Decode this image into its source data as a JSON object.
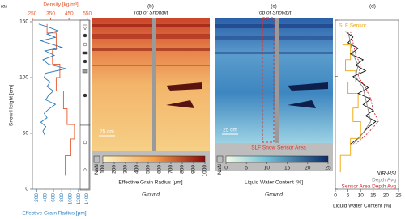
{
  "panel_labels": [
    "(a)",
    "(b)",
    "(c)",
    "(d)"
  ],
  "chart_data": [
    {
      "type": "profile",
      "y_label": "Snow Height [cm]",
      "ylim": [
        0,
        150
      ],
      "yticks": [
        0,
        50,
        100,
        150
      ],
      "x_label": "Density [kg/m³]",
      "xlim": [
        250,
        560
      ],
      "xticks": [
        250,
        350,
        450,
        550
      ],
      "x2_label": "Effective Grain Radius [μm]",
      "x2lim": [
        100,
        1450
      ],
      "x2ticks": [
        200,
        400,
        600,
        800,
        1000,
        1200,
        1400
      ],
      "series": [
        {
          "color": "#e4572e",
          "y": [
            148,
            140,
            140,
            125,
            125,
            112,
            112,
            100,
            100,
            88,
            88,
            72,
            72,
            58,
            58,
            45,
            45,
            30,
            30,
            12
          ],
          "x": [
            330,
            330,
            380,
            380,
            360,
            360,
            400,
            400,
            380,
            380,
            420,
            420,
            440,
            440,
            480,
            480,
            460,
            460,
            430,
            430
          ]
        },
        {
          "color": "#2b7bba",
          "axis": "x2",
          "y": [
            148,
            145,
            142,
            139,
            136,
            133,
            130,
            127,
            124,
            120,
            116,
            112,
            108,
            104,
            100,
            96,
            92,
            88,
            84,
            80,
            76,
            72,
            68,
            64,
            60,
            56,
            52,
            48
          ],
          "x": [
            250,
            500,
            700,
            450,
            650,
            300,
            550,
            800,
            400,
            620,
            350,
            480,
            900,
            420,
            380,
            520,
            450,
            600,
            480,
            420,
            650,
            500,
            380,
            450,
            300,
            420,
            350,
            400
          ]
        }
      ]
    },
    {
      "type": "heatmap",
      "title": "Top of Snowpit",
      "bottom_label": "Ground",
      "scale_label": "25 cm",
      "colorbar_label": "Effective Grain Radius [μm]",
      "nan_label": "NaN",
      "zlim": [
        100,
        1000
      ],
      "zticks": [
        100,
        200,
        300,
        400,
        500,
        600,
        700,
        800,
        900,
        1000
      ]
    },
    {
      "type": "heatmap",
      "title": "Top of Snowpit",
      "bottom_label": "Ground",
      "scale_label": "25 cm",
      "colorbar_label": "Liquid Water Content [%]",
      "nan_label": "NaN",
      "annotation": "SLF Snow Sensor Area",
      "zlim": [
        0,
        25
      ],
      "zticks": [
        0,
        5,
        10,
        15,
        20,
        25
      ]
    },
    {
      "type": "line",
      "x_label": "Liquid Water Content [%]",
      "xlim": [
        0,
        25
      ],
      "xticks": [
        0,
        5,
        10,
        15,
        20,
        25
      ],
      "ylim": [
        0,
        150
      ],
      "yticks": [
        0,
        50,
        100,
        150
      ],
      "series": [
        {
          "name": "SLF Sensor",
          "color": "#f0a500",
          "dash": false,
          "y": [
            140,
            128,
            128,
            115,
            115,
            105,
            105,
            95,
            95,
            85,
            85,
            72,
            72,
            60,
            60,
            45,
            45,
            30,
            30,
            15
          ],
          "values": [
            3,
            3,
            6,
            6,
            4,
            4,
            8,
            8,
            5,
            5,
            9,
            9,
            7,
            7,
            10,
            10,
            6,
            6,
            2,
            2
          ]
        },
        {
          "name": "NIR-HSI",
          "color": "#111111",
          "dash": false,
          "y": [
            140,
            135,
            130,
            125,
            120,
            115,
            110,
            105,
            100,
            95,
            90,
            85,
            80,
            75,
            70,
            65,
            60,
            55,
            50,
            45,
            40
          ],
          "values": [
            4,
            7,
            5,
            9,
            6,
            11,
            8,
            12,
            7,
            10,
            13,
            9,
            14,
            11,
            15,
            12,
            16,
            13,
            11,
            9,
            6
          ]
        },
        {
          "name": "Depth Avg",
          "color": "#888888",
          "dash": false,
          "y": [
            140,
            130,
            120,
            110,
            100,
            90,
            80,
            70,
            60,
            50,
            40
          ],
          "values": [
            5,
            6,
            7,
            9,
            8,
            11,
            12,
            13,
            14,
            11,
            7
          ]
        },
        {
          "name": "Sensor Area Depth Avg",
          "color": "#d62728",
          "dash": true,
          "y": [
            140,
            130,
            120,
            110,
            100,
            90,
            80,
            70,
            60,
            50,
            40
          ],
          "values": [
            6,
            7,
            8,
            10,
            9,
            12,
            14,
            15,
            17,
            13,
            8
          ]
        }
      ]
    }
  ]
}
